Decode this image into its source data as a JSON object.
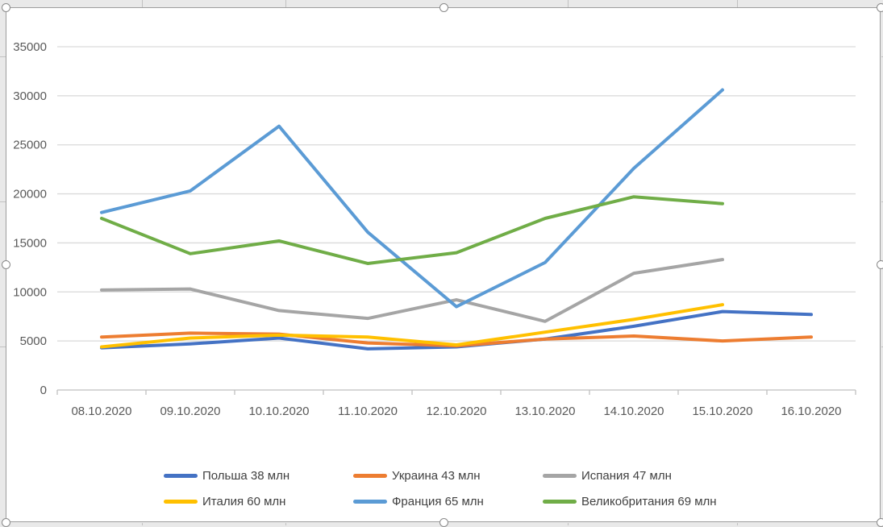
{
  "chart_data": {
    "type": "line",
    "title": "",
    "xlabel": "",
    "ylabel": "",
    "categories": [
      "08.10.2020",
      "09.10.2020",
      "10.10.2020",
      "11.10.2020",
      "12.10.2020",
      "13.10.2020",
      "14.10.2020",
      "15.10.2020",
      "16.10.2020"
    ],
    "series": [
      {
        "name": "Польша 38 млн",
        "color": "#4472C4",
        "values": [
          4300,
          4700,
          5300,
          4200,
          4400,
          5200,
          6500,
          8000,
          7700
        ]
      },
      {
        "name": "Украина 43 млн",
        "color": "#ED7D31",
        "values": [
          5400,
          5800,
          5700,
          4800,
          4500,
          5200,
          5500,
          5000,
          5400
        ]
      },
      {
        "name": "Испания 47 млн",
        "color": "#A5A5A5",
        "values": [
          10200,
          10300,
          8100,
          7300,
          9200,
          7000,
          11900,
          13300,
          null
        ]
      },
      {
        "name": "Италия 60 млн",
        "color": "#FFC000",
        "values": [
          4400,
          5300,
          5600,
          5400,
          4600,
          5900,
          7200,
          8700,
          null
        ]
      },
      {
        "name": "Франция 65 млн",
        "color": "#5B9BD5",
        "values": [
          18100,
          20300,
          26900,
          16100,
          8500,
          13000,
          22600,
          30600,
          null
        ]
      },
      {
        "name": "Великобритания 69 млн",
        "color": "#70AD47",
        "values": [
          17500,
          13900,
          15200,
          12900,
          14000,
          17500,
          19700,
          19000,
          null
        ]
      }
    ],
    "ylim": [
      0,
      35000
    ],
    "y_ticks": [
      0,
      5000,
      10000,
      15000,
      20000,
      25000,
      30000,
      35000
    ],
    "grid": "horizontal",
    "legend_position": "bottom"
  },
  "ui": {
    "colors": {
      "page_bg": "#e9e9e9",
      "chart_bg": "#ffffff",
      "chart_border": "#9d9d9d",
      "gridline": "#d9d9d9",
      "axis_line": "#bfbfbf",
      "tick": "#bfbfbf",
      "axis_label": "#595959",
      "legend_text": "#404040",
      "handle_fill": "#ffffff",
      "handle_border": "#8a8a8a",
      "cell_line": "#c2c2c2"
    },
    "selection_handles": [
      "top-left",
      "top-center",
      "top-right",
      "mid-left",
      "mid-right",
      "bottom-left",
      "bottom-center",
      "bottom-right"
    ]
  }
}
